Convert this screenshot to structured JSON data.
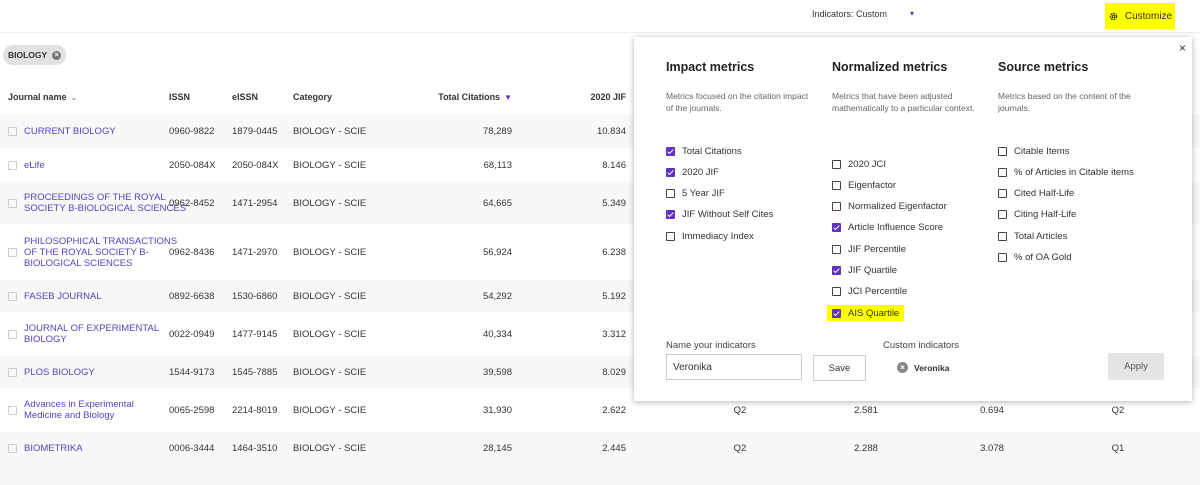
{
  "top_bar": {
    "indicators_label": "Indicators: Custom",
    "customize": "Customize",
    "customize_highlighted": true
  },
  "filter_chip": "BIOLOGY",
  "table": {
    "columns": [
      "Journal name",
      "ISSN",
      "eISSN",
      "Category",
      "Total Citations",
      "2020 JIF"
    ],
    "rows": [
      {
        "name_lines": [
          "CURRENT BIOLOGY"
        ],
        "issn": "0960-9822",
        "eissn": "1879-0445",
        "category": "BIOLOGY - SCIE",
        "total_citations": "78,289",
        "jif": "10.834",
        "extra": []
      },
      {
        "name_lines": [
          "eLife"
        ],
        "issn": "2050-084X",
        "eissn": "2050-084X",
        "category": "BIOLOGY - SCIE",
        "total_citations": "68,113",
        "jif": "8.146",
        "extra": []
      },
      {
        "name_lines": [
          "PROCEEDINGS OF THE ROYAL",
          "SOCIETY B-BIOLOGICAL SCIENCES"
        ],
        "issn": "0962-8452",
        "eissn": "1471-2954",
        "category": "BIOLOGY - SCIE",
        "total_citations": "64,665",
        "jif": "5.349",
        "extra": []
      },
      {
        "name_lines": [
          "PHILOSOPHICAL TRANSACTIONS",
          "OF THE ROYAL SOCIETY B-",
          "BIOLOGICAL SCIENCES"
        ],
        "issn": "0962-8436",
        "eissn": "1471-2970",
        "category": "BIOLOGY - SCIE",
        "total_citations": "56,924",
        "jif": "6.238",
        "extra": []
      },
      {
        "name_lines": [
          "FASEB JOURNAL"
        ],
        "issn": "0892-6638",
        "eissn": "1530-6860",
        "category": "BIOLOGY - SCIE",
        "total_citations": "54,292",
        "jif": "5.192",
        "extra": []
      },
      {
        "name_lines": [
          "JOURNAL OF EXPERIMENTAL",
          "BIOLOGY"
        ],
        "issn": "0022-0949",
        "eissn": "1477-9145",
        "category": "BIOLOGY - SCIE",
        "total_citations": "40,334",
        "jif": "3.312",
        "extra": []
      },
      {
        "name_lines": [
          "PLOS BIOLOGY"
        ],
        "issn": "1544-9173",
        "eissn": "1545-7885",
        "category": "BIOLOGY - SCIE",
        "total_citations": "39,598",
        "jif": "8.029",
        "extra": []
      },
      {
        "name_lines": [
          "Advances in Experimental",
          "Medicine and Biology"
        ],
        "issn": "0065-2598",
        "eissn": "2214-8019",
        "category": "BIOLOGY - SCIE",
        "total_citations": "31,930",
        "jif": "2.622",
        "extra": [
          "Q2",
          "2.581",
          "0.694",
          "Q2"
        ]
      },
      {
        "name_lines": [
          "BIOMETRIKA"
        ],
        "issn": "0006-3444",
        "eissn": "1464-3510",
        "category": "BIOLOGY - SCIE",
        "total_citations": "28,145",
        "jif": "2.445",
        "extra": [
          "Q2",
          "2.288",
          "3.078",
          "Q1"
        ]
      }
    ]
  },
  "panel": {
    "groups": [
      {
        "title": "Impact metrics",
        "description": "Metrics focused on the citation impact of the journals.",
        "items": [
          {
            "label": "Total Citations",
            "checked": true
          },
          {
            "label": "2020 JIF",
            "checked": true
          },
          {
            "label": "5 Year JIF",
            "checked": false
          },
          {
            "label": "JIF Without Self Cites",
            "checked": true
          },
          {
            "label": "Immediacy Index",
            "checked": false
          }
        ]
      },
      {
        "title": "Normalized metrics",
        "description": "Metrics that have been adjusted mathematically to a particular context.",
        "items": [
          {
            "label": "2020 JCI",
            "checked": false
          },
          {
            "label": "Eigenfactor",
            "checked": false
          },
          {
            "label": "Normalized Eigenfactor",
            "checked": false
          },
          {
            "label": "Article Influence Score",
            "checked": true
          },
          {
            "label": "JIF Percentile",
            "checked": false
          },
          {
            "label": "JIF Quartile",
            "checked": true
          },
          {
            "label": "JCI Percentile",
            "checked": false
          },
          {
            "label": "AIS Quartile",
            "checked": true,
            "highlighted": true
          }
        ]
      },
      {
        "title": "Source metrics",
        "description": "Metrics based on the content of the journals.",
        "items": [
          {
            "label": "Citable Items",
            "checked": false
          },
          {
            "label": "% of Articles in Citable items",
            "checked": false
          },
          {
            "label": "Cited Half-Life",
            "checked": false
          },
          {
            "label": "Citing Half-Life",
            "checked": false
          },
          {
            "label": "Total Articles",
            "checked": false
          },
          {
            "label": "% of OA Gold",
            "checked": false
          }
        ]
      }
    ],
    "name_label": "Name your indicators",
    "name_value": "Veronika",
    "save": "Save",
    "custom_label": "Custom indicators",
    "custom_items": [
      "Veronika"
    ],
    "apply": "Apply"
  }
}
